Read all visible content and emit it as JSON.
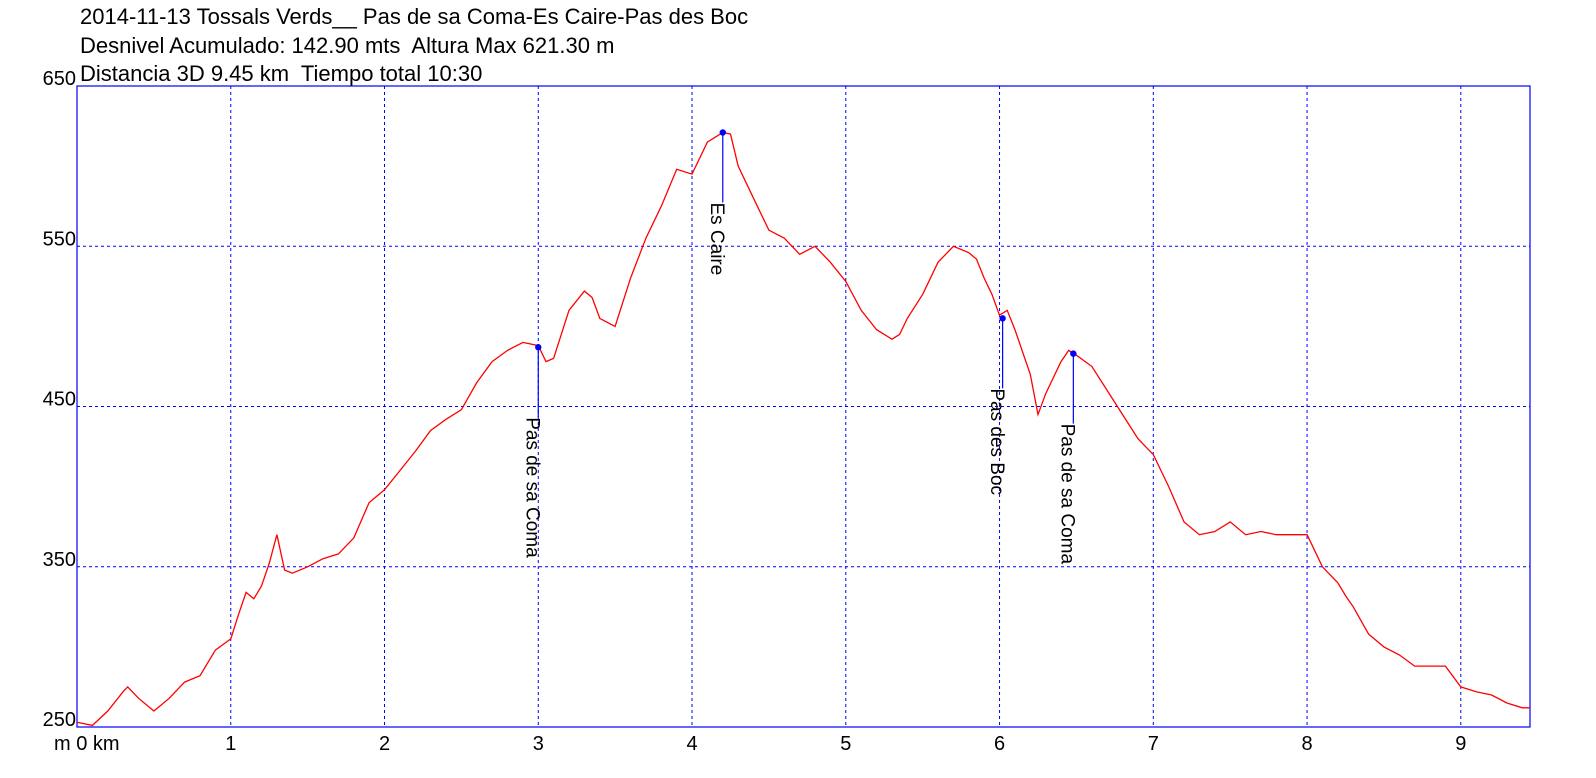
{
  "header": {
    "line1": "2014-11-13 Tossals Verds__ Pas de sa Coma-Es Caire-Pas des Boc",
    "line2": "Desnivel Acumulado: 142.90 mts  Altura Max 621.30 m",
    "line3": "Distancia 3D 9.45 km  Tiempo total 10:30"
  },
  "chart_data": {
    "type": "line",
    "title": "",
    "xlabel": "",
    "ylabel": "",
    "xlim": [
      0,
      9.45
    ],
    "ylim": [
      250,
      650
    ],
    "grid": true,
    "x_ticks": [
      0,
      1,
      2,
      3,
      4,
      5,
      6,
      7,
      8,
      9
    ],
    "x_tick_labels": [
      "m 0 km",
      "1",
      "2",
      "3",
      "4",
      "5",
      "6",
      "7",
      "8",
      "9"
    ],
    "y_ticks": [
      250,
      350,
      450,
      550,
      650
    ],
    "y_tick_labels": [
      "250",
      "350",
      "450",
      "550",
      "650"
    ],
    "colors": {
      "line": "#ff0000",
      "grid": "#0000ff",
      "frame": "#0000ff",
      "marker": "#0000ff",
      "marker_text": "#000000"
    },
    "series": [
      {
        "x": [
          0,
          0.1,
          0.2,
          0.3,
          0.33,
          0.4,
          0.5,
          0.6,
          0.7,
          0.8,
          0.9,
          1.0,
          1.05,
          1.1,
          1.15,
          1.2,
          1.25,
          1.3,
          1.35,
          1.4,
          1.5,
          1.6,
          1.7,
          1.8,
          1.9,
          2.0,
          2.1,
          2.2,
          2.3,
          2.4,
          2.5,
          2.6,
          2.7,
          2.8,
          2.9,
          3.0,
          3.05,
          3.1,
          3.2,
          3.3,
          3.35,
          3.4,
          3.5,
          3.6,
          3.7,
          3.8,
          3.9,
          4.0,
          4.1,
          4.2,
          4.25,
          4.3,
          4.4,
          4.5,
          4.6,
          4.7,
          4.8,
          4.9,
          5.0,
          5.1,
          5.2,
          5.3,
          5.35,
          5.4,
          5.5,
          5.6,
          5.7,
          5.8,
          5.85,
          5.9,
          5.95,
          6.0,
          6.05,
          6.1,
          6.2,
          6.25,
          6.3,
          6.4,
          6.45,
          6.5,
          6.6,
          6.7,
          6.8,
          6.9,
          7.0,
          7.1,
          7.2,
          7.3,
          7.4,
          7.5,
          7.6,
          7.7,
          7.8,
          7.9,
          8.0,
          8.1,
          8.2,
          8.25,
          8.3,
          8.4,
          8.5,
          8.6,
          8.7,
          8.8,
          8.9,
          9.0,
          9.1,
          9.2,
          9.3,
          9.4,
          9.45
        ],
        "y": [
          253,
          251,
          260,
          272,
          275,
          268,
          260,
          268,
          278,
          282,
          298,
          305,
          320,
          334,
          330,
          338,
          352,
          370,
          348,
          346,
          350,
          355,
          358,
          368,
          390,
          398,
          410,
          422,
          435,
          442,
          448,
          465,
          478,
          485,
          490,
          488,
          478,
          480,
          510,
          522,
          518,
          505,
          500,
          530,
          555,
          575,
          598,
          595,
          615,
          621,
          620,
          600,
          580,
          560,
          555,
          545,
          550,
          540,
          528,
          510,
          498,
          492,
          495,
          505,
          520,
          540,
          550,
          546,
          542,
          530,
          520,
          507,
          510,
          498,
          470,
          445,
          458,
          478,
          485,
          482,
          475,
          460,
          445,
          430,
          420,
          400,
          378,
          370,
          372,
          378,
          370,
          372,
          370,
          370,
          370,
          350,
          340,
          332,
          325,
          308,
          300,
          295,
          288,
          288,
          288,
          275,
          272,
          270,
          265,
          262,
          262
        ]
      }
    ],
    "annotations": [
      {
        "x": 3.0,
        "y": 487,
        "label": "Pas de sa Coma"
      },
      {
        "x": 4.2,
        "y": 621,
        "label": "Es Caire"
      },
      {
        "x": 6.02,
        "y": 505,
        "label": "Pas des Boc"
      },
      {
        "x": 6.48,
        "y": 483,
        "label": "Pas de sa Coma"
      }
    ]
  }
}
